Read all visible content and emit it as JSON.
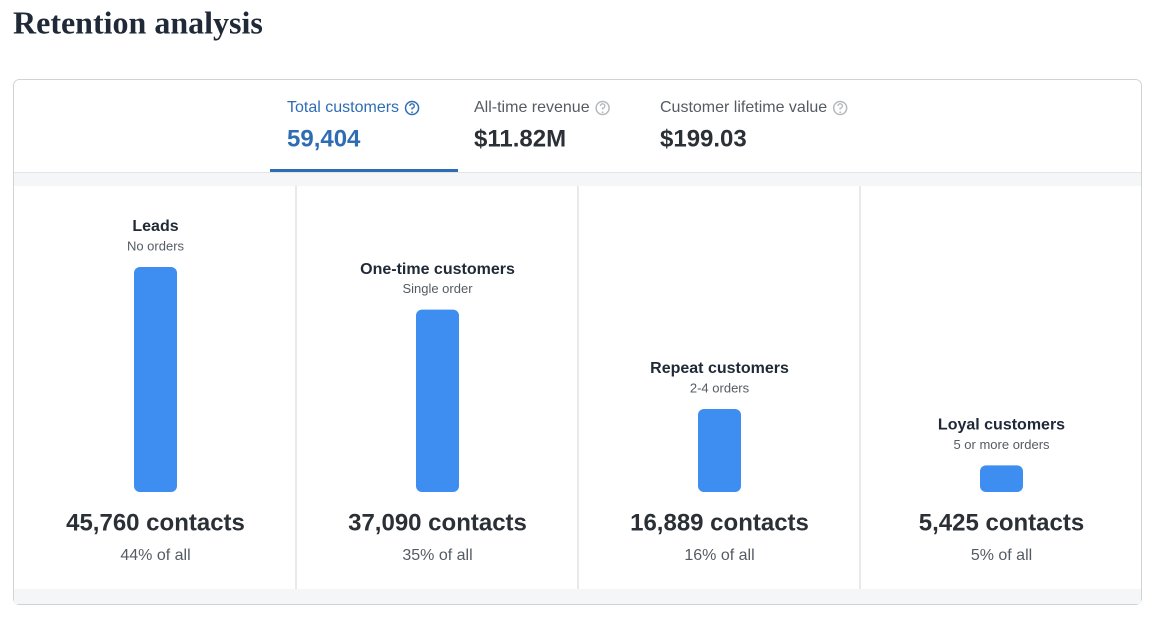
{
  "header": {
    "title": "Retention analysis"
  },
  "tabs": [
    {
      "label": "Total customers",
      "value": "59,404",
      "active": true
    },
    {
      "label": "All-time revenue",
      "value": "$11.82M",
      "active": false
    },
    {
      "label": "Customer lifetime value",
      "value": "$199.03",
      "active": false
    }
  ],
  "chart_data": {
    "type": "bar",
    "color": "#3d8ef0",
    "categories": [
      "Leads",
      "One-time customers",
      "Repeat customers",
      "Loyal customers"
    ],
    "subtitles": [
      "No orders",
      "Single order",
      "2-4 orders",
      "5 or more orders"
    ],
    "values": [
      45760,
      37090,
      16889,
      5425
    ],
    "value_labels": [
      "45,760 contacts",
      "37,090 contacts",
      "16,889 contacts",
      "5,425 contacts"
    ],
    "shares": [
      44,
      35,
      16,
      5
    ],
    "share_labels": [
      "44% of all",
      "35% of all",
      "16% of all",
      "5% of all"
    ]
  }
}
